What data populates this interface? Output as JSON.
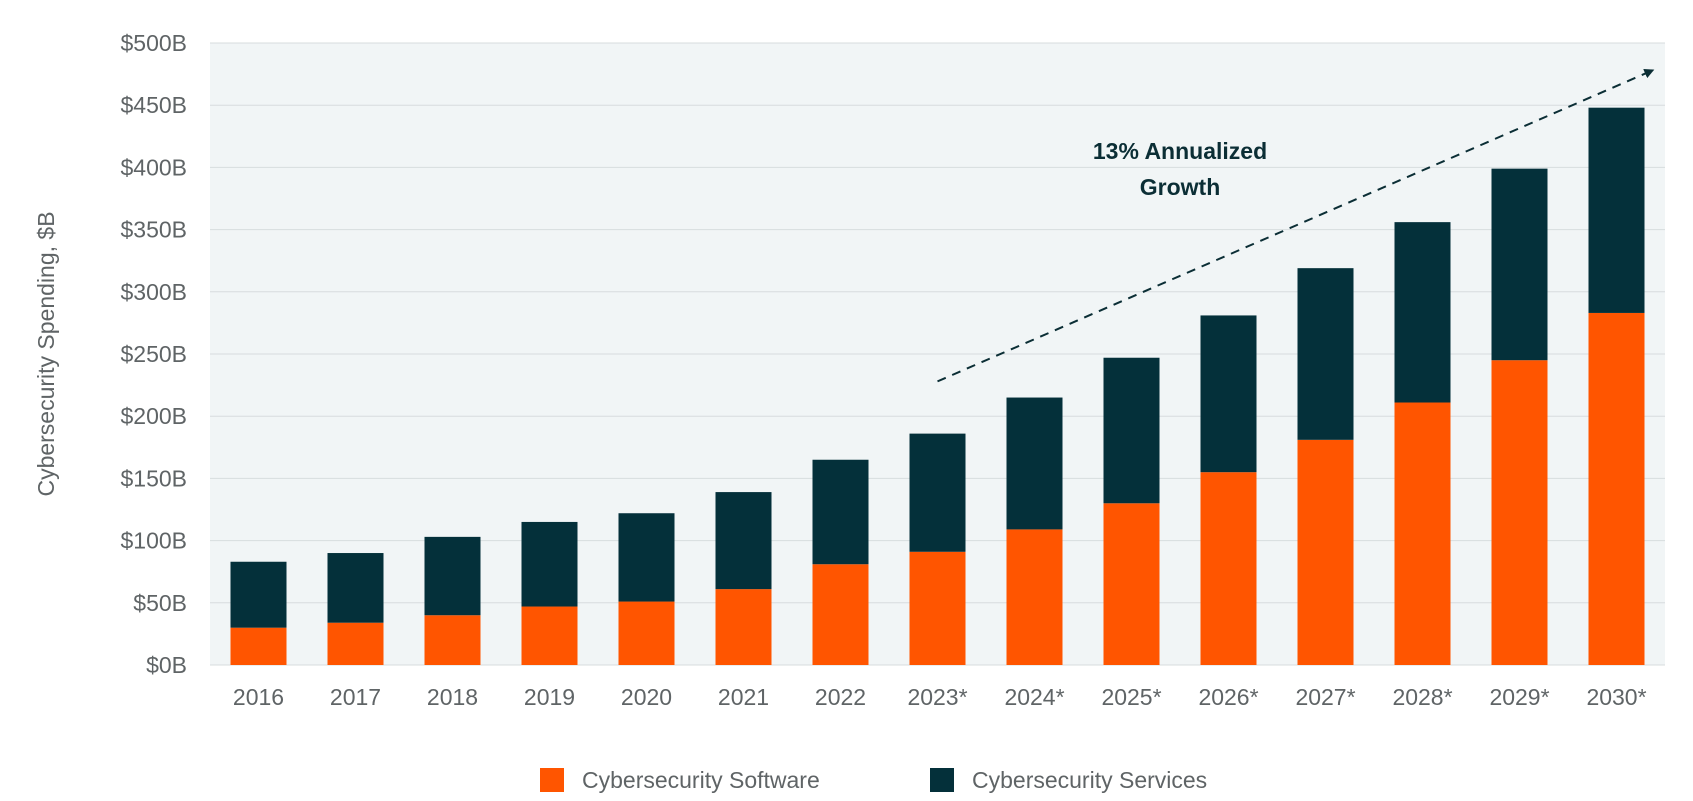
{
  "chart_data": {
    "type": "bar",
    "stacked": true,
    "categories": [
      "2016",
      "2017",
      "2018",
      "2019",
      "2020",
      "2021",
      "2022",
      "2023*",
      "2024*",
      "2025*",
      "2026*",
      "2027*",
      "2028*",
      "2029*",
      "2030*"
    ],
    "series": [
      {
        "name": "Cybersecurity Software",
        "color": "#ff5500",
        "values": [
          30,
          34,
          40,
          47,
          51,
          61,
          81,
          91,
          109,
          130,
          155,
          181,
          211,
          245,
          283
        ]
      },
      {
        "name": "Cybersecurity Services",
        "color": "#04303a",
        "values": [
          53,
          56,
          63,
          68,
          71,
          78,
          84,
          95,
          106,
          117,
          126,
          138,
          145,
          154,
          165
        ]
      }
    ],
    "ylabel": "Cybersecurity Spending, $B",
    "xlabel": "",
    "ylim": [
      0,
      500
    ],
    "yticks": [
      0,
      50,
      100,
      150,
      200,
      250,
      300,
      350,
      400,
      450,
      500
    ],
    "ytick_labels": [
      "$0B",
      "$50B",
      "$100B",
      "$150B",
      "$200B",
      "$250B",
      "$300B",
      "$350B",
      "$400B",
      "$450B",
      "$500B"
    ],
    "grid": true,
    "plot_background": "#f1f5f6",
    "legend_position": "bottom",
    "annotation": {
      "lines": [
        "13% Annualized",
        "Growth"
      ],
      "arrow_style": "dashed",
      "arrow_from": {
        "x": "2023*",
        "y": 228
      },
      "arrow_to": {
        "x": "2030*",
        "y": 478
      }
    }
  }
}
